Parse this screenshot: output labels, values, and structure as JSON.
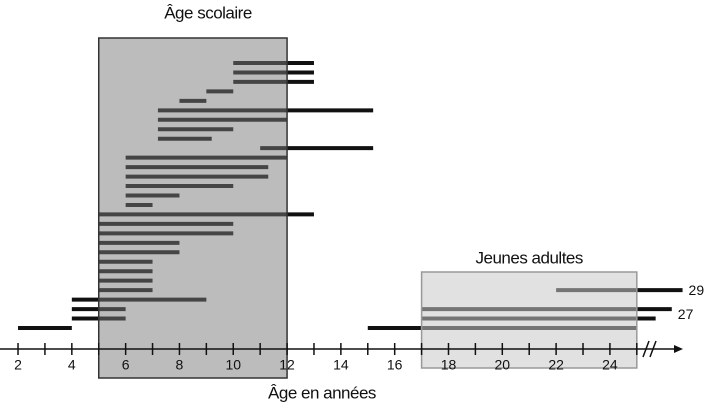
{
  "chart_data": {
    "type": "range-bar",
    "title": "Âge scolaire",
    "x_label": "Âge en années",
    "regions": [
      {
        "label": "Âge scolaire",
        "xlim": [
          5,
          12
        ]
      },
      {
        "label": "Jeunes adultes",
        "xlim": [
          17,
          25
        ]
      }
    ],
    "xlim": [
      1.33,
      27.72
    ],
    "xticks": [
      2,
      4,
      6,
      8,
      10,
      12,
      14,
      16,
      18,
      20,
      22,
      24
    ],
    "xminorticks": [
      3,
      5,
      7,
      9,
      11,
      13,
      15,
      17,
      19,
      21,
      23,
      25
    ],
    "color": "#111111",
    "rows": [
      [
        {
          "start": 10,
          "end": 13
        }
      ],
      [
        {
          "start": 10,
          "end": 13
        }
      ],
      [
        {
          "start": 10,
          "end": 13
        }
      ],
      [
        {
          "start": 9,
          "end": 10
        }
      ],
      [
        {
          "start": 8,
          "end": 9
        }
      ],
      [
        {
          "start": 7.2,
          "end": 15.2
        }
      ],
      [
        {
          "start": 7.2,
          "end": 12
        }
      ],
      [
        {
          "start": 7.2,
          "end": 10
        }
      ],
      [
        {
          "start": 7.2,
          "end": 9.2
        }
      ],
      [
        {
          "start": 11,
          "end": 15.2
        }
      ],
      [
        {
          "start": 6,
          "end": 12
        }
      ],
      [
        {
          "start": 6,
          "end": 11.3
        }
      ],
      [
        {
          "start": 6,
          "end": 11.3
        }
      ],
      [
        {
          "start": 6,
          "end": 10
        }
      ],
      [
        {
          "start": 6,
          "end": 8
        }
      ],
      [
        {
          "start": 6,
          "end": 7
        }
      ],
      [
        {
          "start": 5,
          "end": 13
        }
      ],
      [
        {
          "start": 5,
          "end": 10
        }
      ],
      [
        {
          "start": 5,
          "end": 10
        }
      ],
      [
        {
          "start": 5,
          "end": 8
        }
      ],
      [
        {
          "start": 5,
          "end": 8
        }
      ],
      [
        {
          "start": 5,
          "end": 7
        }
      ],
      [
        {
          "start": 5,
          "end": 7
        }
      ],
      [
        {
          "start": 5,
          "end": 7
        }
      ],
      [
        {
          "start": 5,
          "end": 7
        },
        {
          "start": 22,
          "end": 26.7,
          "label": "29"
        }
      ],
      [
        {
          "start": 4,
          "end": 9
        }
      ],
      [
        {
          "start": 4,
          "end": 6
        },
        {
          "start": 17,
          "end": 26.3,
          "label": "27"
        }
      ],
      [
        {
          "start": 4,
          "end": 6
        },
        {
          "start": 17,
          "end": 25.7
        }
      ],
      [
        {
          "start": 2,
          "end": 4
        },
        {
          "start": 15,
          "end": 25
        }
      ]
    ]
  }
}
